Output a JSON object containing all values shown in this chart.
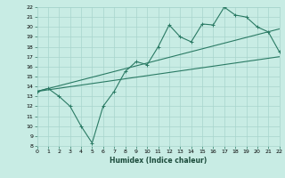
{
  "title": "",
  "xlabel": "Humidex (Indice chaleur)",
  "background_color": "#c8ece4",
  "grid_color": "#a8d4cc",
  "line_color": "#2a7a64",
  "xlim": [
    0,
    22
  ],
  "ylim": [
    8,
    22
  ],
  "xticks": [
    0,
    1,
    2,
    3,
    4,
    5,
    6,
    7,
    8,
    9,
    10,
    11,
    12,
    13,
    14,
    15,
    16,
    17,
    18,
    19,
    20,
    21,
    22
  ],
  "yticks": [
    8,
    9,
    10,
    11,
    12,
    13,
    14,
    15,
    16,
    17,
    18,
    19,
    20,
    21,
    22
  ],
  "line1_x": [
    0,
    1,
    2,
    3,
    4,
    5,
    6,
    7,
    8,
    9,
    10,
    11,
    12,
    13,
    14,
    15,
    16,
    17,
    18,
    19,
    20,
    21,
    22
  ],
  "line1_y": [
    13.5,
    13.8,
    13.0,
    12.0,
    10.0,
    8.3,
    12.0,
    13.5,
    15.5,
    16.5,
    16.2,
    18.0,
    20.2,
    19.0,
    18.5,
    20.3,
    20.2,
    22.0,
    21.2,
    21.0,
    20.0,
    19.5,
    17.5
  ],
  "line2_x": [
    0,
    22
  ],
  "line2_y": [
    13.5,
    17.0
  ],
  "line3_x": [
    0,
    22
  ],
  "line3_y": [
    13.5,
    19.8
  ],
  "label_fontsize": 5.5,
  "tick_fontsize": 4.5
}
